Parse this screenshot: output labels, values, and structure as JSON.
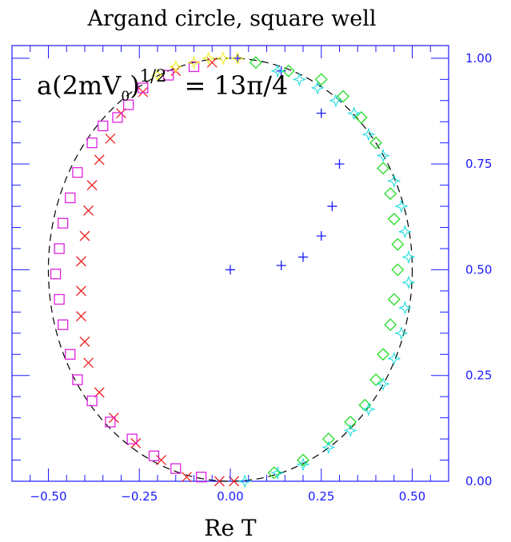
{
  "chart_data": {
    "type": "scatter",
    "title": "Argand circle, square well",
    "annotation": {
      "prefix": "a(2mV",
      "subscript": "0",
      "close": ")",
      "superscript": "1/2",
      "suffix": "= 13π/4"
    },
    "xlabel": "Re T",
    "ylabel": "",
    "xlim": [
      -0.6,
      0.6
    ],
    "ylim": [
      0.0,
      1.03
    ],
    "x_ticks": [
      {
        "value": -0.5,
        "label": "−0.50"
      },
      {
        "value": -0.25,
        "label": "−0.25"
      },
      {
        "value": 0.0,
        "label": "0.00"
      },
      {
        "value": 0.25,
        "label": "0.25"
      },
      {
        "value": 0.5,
        "label": "0.50"
      }
    ],
    "y_ticks": [
      {
        "value": 0.0,
        "label": "0.00"
      },
      {
        "value": 0.25,
        "label": "0.25"
      },
      {
        "value": 0.5,
        "label": "0.50"
      },
      {
        "value": 0.75,
        "label": "0.75"
      },
      {
        "value": 1.0,
        "label": "1.00"
      }
    ],
    "unitarity_circle": {
      "center": [
        0.0,
        0.5
      ],
      "radius": 0.5,
      "style": "dashed",
      "color": "#000000"
    },
    "series": [
      {
        "marker": "plus",
        "color": "#1a1aff",
        "points": [
          [
            0.0,
            0.5
          ],
          [
            0.14,
            0.51
          ],
          [
            0.2,
            0.53
          ],
          [
            0.25,
            0.58
          ],
          [
            0.28,
            0.65
          ],
          [
            0.3,
            0.75
          ],
          [
            0.25,
            0.87
          ],
          [
            0.14,
            0.97
          ],
          [
            0.02,
            1.0
          ]
        ]
      },
      {
        "marker": "diamond",
        "color": "#22dd22",
        "points": [
          [
            0.07,
            0.99
          ],
          [
            0.16,
            0.97
          ],
          [
            0.25,
            0.95
          ],
          [
            0.31,
            0.91
          ],
          [
            0.36,
            0.86
          ],
          [
            0.4,
            0.8
          ],
          [
            0.42,
            0.74
          ],
          [
            0.44,
            0.68
          ],
          [
            0.45,
            0.62
          ],
          [
            0.46,
            0.56
          ],
          [
            0.46,
            0.5
          ],
          [
            0.45,
            0.43
          ],
          [
            0.44,
            0.37
          ],
          [
            0.42,
            0.3
          ],
          [
            0.4,
            0.24
          ],
          [
            0.37,
            0.18
          ],
          [
            0.33,
            0.14
          ],
          [
            0.27,
            0.1
          ],
          [
            0.2,
            0.05
          ],
          [
            0.12,
            0.02
          ]
        ]
      },
      {
        "marker": "star",
        "color": "#22dddd",
        "points": [
          [
            0.13,
            0.97
          ],
          [
            0.19,
            0.95
          ],
          [
            0.24,
            0.93
          ],
          [
            0.29,
            0.9
          ],
          [
            0.34,
            0.87
          ],
          [
            0.38,
            0.82
          ],
          [
            0.42,
            0.77
          ],
          [
            0.45,
            0.71
          ],
          [
            0.47,
            0.65
          ],
          [
            0.48,
            0.59
          ],
          [
            0.49,
            0.53
          ],
          [
            0.49,
            0.47
          ],
          [
            0.48,
            0.41
          ],
          [
            0.47,
            0.35
          ],
          [
            0.45,
            0.29
          ],
          [
            0.42,
            0.23
          ],
          [
            0.38,
            0.17
          ],
          [
            0.33,
            0.12
          ],
          [
            0.27,
            0.08
          ],
          [
            0.2,
            0.04
          ],
          [
            0.13,
            0.02
          ],
          [
            0.04,
            0.0
          ]
        ]
      },
      {
        "marker": "cross",
        "color": "#ee2222",
        "points": [
          [
            -0.05,
            0.99
          ],
          [
            -0.15,
            0.97
          ],
          [
            -0.24,
            0.92
          ],
          [
            -0.3,
            0.87
          ],
          [
            -0.33,
            0.81
          ],
          [
            -0.36,
            0.76
          ],
          [
            -0.38,
            0.7
          ],
          [
            -0.39,
            0.64
          ],
          [
            -0.4,
            0.58
          ],
          [
            -0.41,
            0.52
          ],
          [
            -0.41,
            0.45
          ],
          [
            -0.41,
            0.39
          ],
          [
            -0.4,
            0.33
          ],
          [
            -0.39,
            0.28
          ],
          [
            -0.36,
            0.21
          ],
          [
            -0.32,
            0.15
          ],
          [
            -0.26,
            0.09
          ],
          [
            -0.19,
            0.05
          ],
          [
            -0.12,
            0.01
          ],
          [
            -0.03,
            0.0
          ],
          [
            0.01,
            0.0
          ]
        ]
      },
      {
        "marker": "square",
        "color": "#dd22dd",
        "points": [
          [
            -0.1,
            0.98
          ],
          [
            -0.17,
            0.96
          ],
          [
            -0.24,
            0.93
          ],
          [
            -0.28,
            0.89
          ],
          [
            -0.31,
            0.86
          ],
          [
            -0.35,
            0.84
          ],
          [
            -0.38,
            0.8
          ],
          [
            -0.42,
            0.73
          ],
          [
            -0.44,
            0.67
          ],
          [
            -0.46,
            0.61
          ],
          [
            -0.47,
            0.55
          ],
          [
            -0.48,
            0.49
          ],
          [
            -0.47,
            0.43
          ],
          [
            -0.46,
            0.37
          ],
          [
            -0.44,
            0.3
          ],
          [
            -0.42,
            0.24
          ],
          [
            -0.38,
            0.19
          ],
          [
            -0.33,
            0.14
          ],
          [
            -0.27,
            0.1
          ],
          [
            -0.21,
            0.06
          ],
          [
            -0.15,
            0.03
          ],
          [
            -0.08,
            0.01
          ]
        ]
      },
      {
        "marker": "star",
        "color": "#eeee22",
        "points": [
          [
            -0.2,
            0.96
          ],
          [
            -0.15,
            0.98
          ],
          [
            -0.1,
            0.99
          ],
          [
            -0.06,
            1.0
          ],
          [
            -0.02,
            1.0
          ],
          [
            0.02,
            1.0
          ]
        ]
      }
    ]
  }
}
